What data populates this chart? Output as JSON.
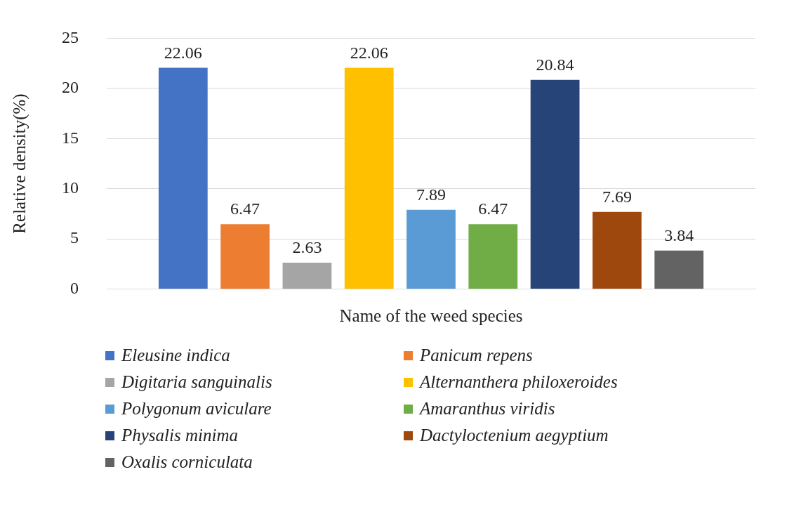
{
  "chart_data": {
    "type": "bar",
    "categories": [
      null
    ],
    "xlabel": "Name of the weed species",
    "ylabel": "Relative density(%)",
    "ylim": [
      0,
      25
    ],
    "yticks": [
      0,
      5,
      10,
      15,
      20,
      25
    ],
    "grid": "y",
    "legend": "bottom",
    "data_labels": true,
    "series": [
      {
        "name": "Eleusine indica",
        "color": "#4472c4",
        "values": [
          22.06
        ]
      },
      {
        "name": "Panicum repens",
        "color": "#ed7d31",
        "values": [
          6.47
        ]
      },
      {
        "name": "Digitaria sanguinalis",
        "color": "#a5a5a5",
        "values": [
          2.63
        ]
      },
      {
        "name": "Alternanthera philoxeroides",
        "color": "#ffc000",
        "values": [
          22.06
        ]
      },
      {
        "name": "Polygonum aviculare",
        "color": "#5b9bd5",
        "values": [
          7.89
        ]
      },
      {
        "name": "Amaranthus viridis",
        "color": "#70ad47",
        "values": [
          6.47
        ]
      },
      {
        "name": "Physalis minima",
        "color": "#264478",
        "values": [
          20.84
        ]
      },
      {
        "name": "Dactyloctenium aegyptium",
        "color": "#9e480e",
        "values": [
          7.69
        ]
      },
      {
        "name": "Oxalis corniculata",
        "color": "#636363",
        "values": [
          3.84
        ]
      }
    ]
  }
}
